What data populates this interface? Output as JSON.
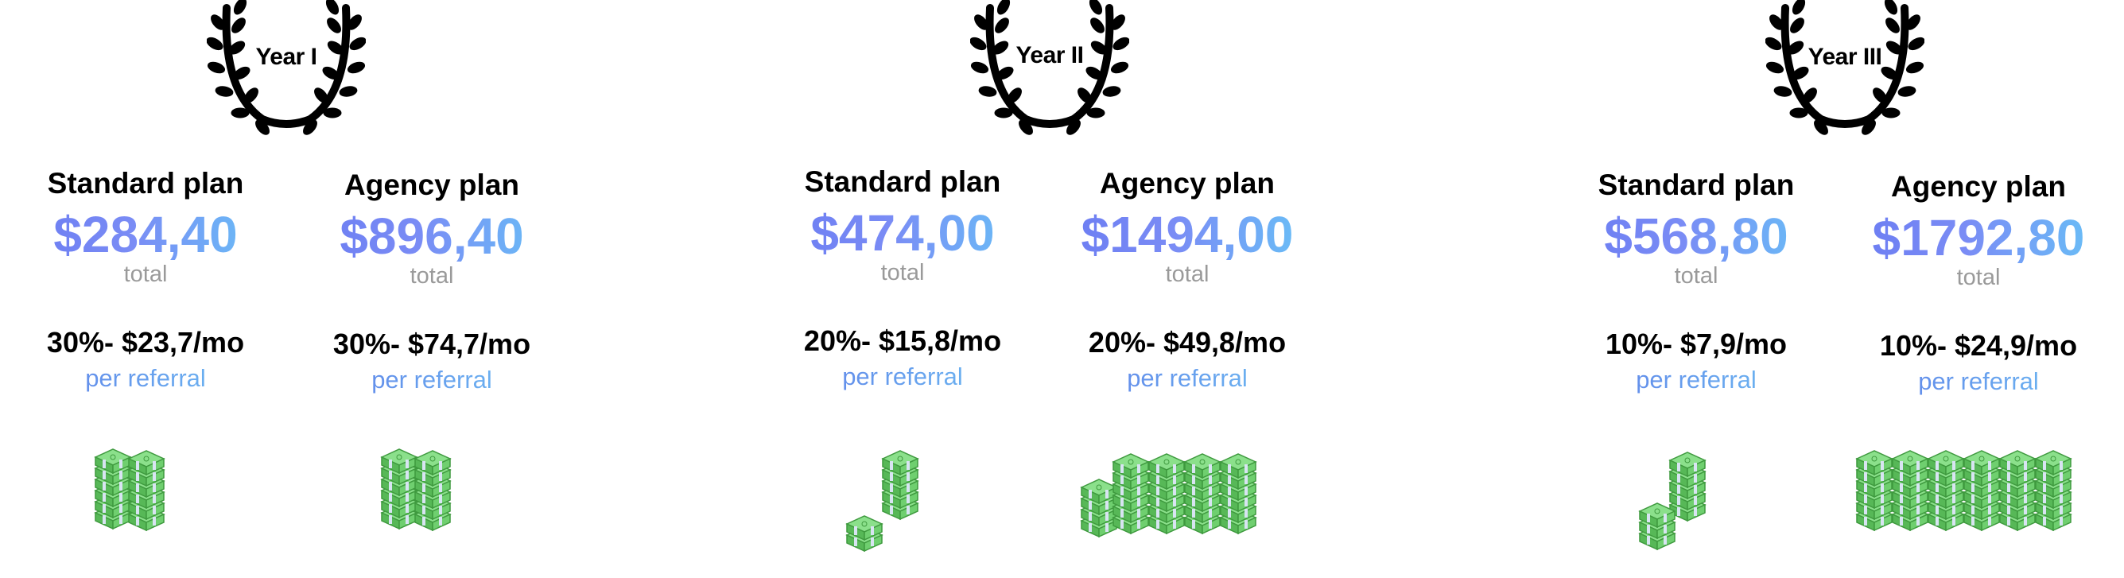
{
  "years": [
    {
      "label": "Year I",
      "plans": [
        {
          "name": "Standard plan",
          "price": "$284,40",
          "total_label": "total",
          "commission": "30%- $23,7/mo",
          "referral_label": "per referral"
        },
        {
          "name": "Agency plan",
          "price": "$896,40",
          "total_label": "total",
          "commission": "30%- $74,7/mo",
          "referral_label": "per referral"
        }
      ]
    },
    {
      "label": "Year II",
      "plans": [
        {
          "name": "Standard plan",
          "price": "$474,00",
          "total_label": "total",
          "commission": "20%- $15,8/mo",
          "referral_label": "per referral"
        },
        {
          "name": "Agency plan",
          "price": "$1494,00",
          "total_label": "total",
          "commission": "20%- $49,8/mo",
          "referral_label": "per referral"
        }
      ]
    },
    {
      "label": "Year III",
      "plans": [
        {
          "name": "Standard plan",
          "price": "$568,80",
          "total_label": "total",
          "commission": "10%- $7,9/mo",
          "referral_label": "per referral"
        },
        {
          "name": "Agency plan",
          "price": "$1792,80",
          "total_label": "total",
          "commission": "10%- $24,9/mo",
          "referral_label": "per referral"
        }
      ]
    }
  ],
  "icons": {
    "laurel": "laurel-wreath-icon",
    "money": "money-stack-icon"
  },
  "colors": {
    "price_gradient_start": "#6b7cf2",
    "price_gradient_end": "#67c4f7",
    "total_gray": "#9a9a9a",
    "money_green": "#5cc35c"
  }
}
